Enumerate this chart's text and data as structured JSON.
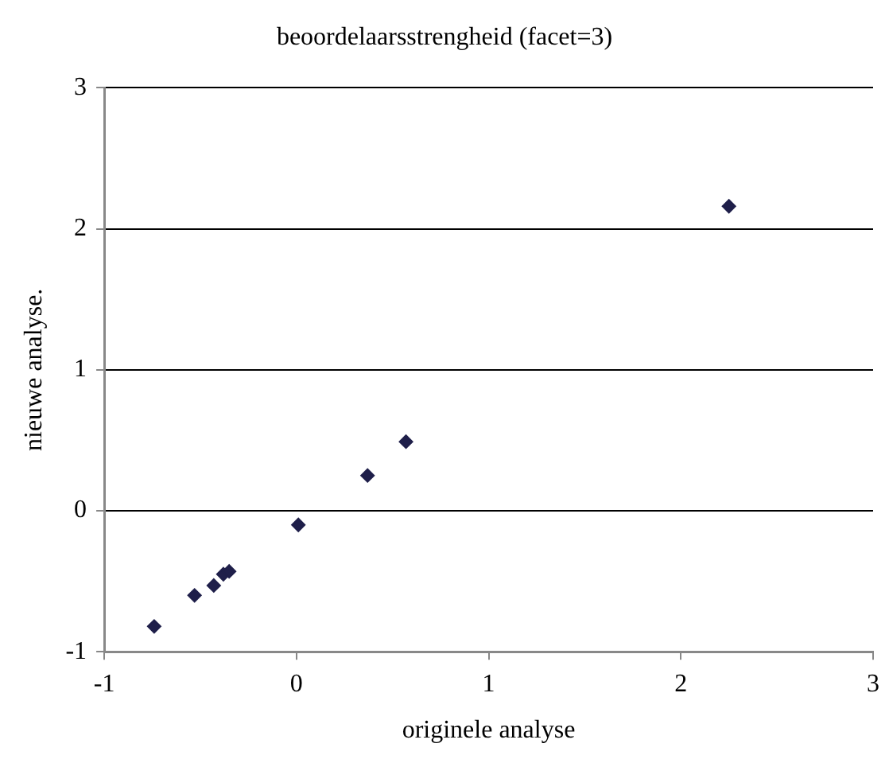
{
  "chart_data": {
    "type": "scatter",
    "title": "beoordelaarsstrengheid (facet=3)",
    "xlabel": "originele analyse",
    "ylabel": "nieuwe analyse.",
    "x": [
      -0.74,
      -0.53,
      -0.43,
      -0.38,
      -0.35,
      0.01,
      0.37,
      0.57,
      2.25
    ],
    "series": [
      {
        "color": "#1f1f4a",
        "values": [
          -0.82,
          -0.6,
          -0.53,
          -0.45,
          -0.43,
          -0.1,
          0.25,
          0.49,
          2.16
        ]
      }
    ],
    "xlim": [
      -1,
      3
    ],
    "xticks": [
      -1,
      0,
      1,
      2,
      3
    ],
    "ylim": [
      -1,
      3
    ],
    "yticks": [
      -1,
      0,
      1,
      2,
      3
    ],
    "grid": "y",
    "marker": "diamond",
    "legend": false
  }
}
